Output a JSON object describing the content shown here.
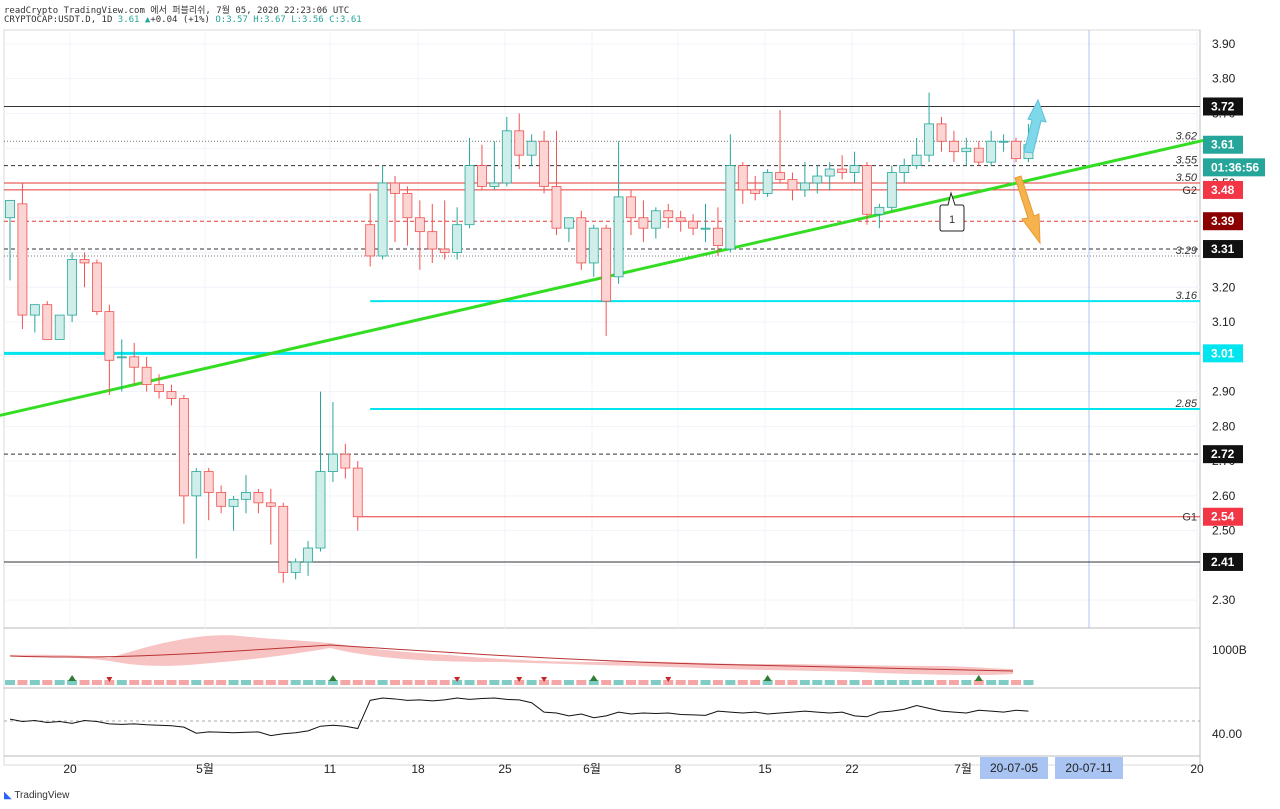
{
  "header": {
    "line1": "readCrypto TradingView.com 에서 퍼블리쉬, 7월 05, 2020 22:23:06 UTC",
    "symbol": "CRYPTOCAP:USDT.D, 1D",
    "last": "3.61",
    "change": "+0.04 (+1%)",
    "ohlc": "O:3.57 H:3.67 L:3.56 C:3.61"
  },
  "footer": {
    "brand": "TradingView"
  },
  "colors": {
    "up": "#26a69a",
    "down": "#ef5350",
    "trend": "#33dd22",
    "cyan": "#00e5ee",
    "red_line": "#e53935"
  },
  "chart_data": {
    "type": "candlestick",
    "y_range": [
      2.22,
      3.94
    ],
    "y_ticks": [
      "3.90",
      "3.80",
      "3.70",
      "3.60",
      "3.50",
      "3.40",
      "3.30",
      "3.20",
      "3.10",
      "3.00",
      "2.90",
      "2.80",
      "2.70",
      "2.60",
      "2.50",
      "2.40",
      "2.30"
    ],
    "x_ticks": [
      "20",
      "5월",
      "11",
      "18",
      "25",
      "6월",
      "8",
      "15",
      "22",
      "7월",
      "20-07-05",
      "20-07-11",
      "20"
    ],
    "candles": [
      {
        "o": 3.4,
        "h": 3.45,
        "l": 3.22,
        "c": 3.45
      },
      {
        "o": 3.44,
        "h": 3.5,
        "l": 3.08,
        "c": 3.12
      },
      {
        "o": 3.12,
        "h": 3.15,
        "l": 3.07,
        "c": 3.15
      },
      {
        "o": 3.15,
        "h": 3.16,
        "l": 3.05,
        "c": 3.05
      },
      {
        "o": 3.05,
        "h": 3.12,
        "l": 3.05,
        "c": 3.12
      },
      {
        "o": 3.12,
        "h": 3.3,
        "l": 3.1,
        "c": 3.28
      },
      {
        "o": 3.28,
        "h": 3.3,
        "l": 3.2,
        "c": 3.27
      },
      {
        "o": 3.27,
        "h": 3.28,
        "l": 3.12,
        "c": 3.13
      },
      {
        "o": 3.13,
        "h": 3.15,
        "l": 2.89,
        "c": 2.99
      },
      {
        "o": 3.0,
        "h": 3.05,
        "l": 2.9,
        "c": 3.0
      },
      {
        "o": 3.0,
        "h": 3.04,
        "l": 2.92,
        "c": 2.97
      },
      {
        "o": 2.97,
        "h": 3.0,
        "l": 2.9,
        "c": 2.92
      },
      {
        "o": 2.92,
        "h": 2.95,
        "l": 2.88,
        "c": 2.9
      },
      {
        "o": 2.9,
        "h": 2.92,
        "l": 2.86,
        "c": 2.88
      },
      {
        "o": 2.88,
        "h": 2.89,
        "l": 2.52,
        "c": 2.6
      },
      {
        "o": 2.6,
        "h": 2.68,
        "l": 2.42,
        "c": 2.67
      },
      {
        "o": 2.67,
        "h": 2.68,
        "l": 2.53,
        "c": 2.61
      },
      {
        "o": 2.61,
        "h": 2.63,
        "l": 2.55,
        "c": 2.57
      },
      {
        "o": 2.57,
        "h": 2.6,
        "l": 2.5,
        "c": 2.59
      },
      {
        "o": 2.59,
        "h": 2.66,
        "l": 2.55,
        "c": 2.61
      },
      {
        "o": 2.61,
        "h": 2.62,
        "l": 2.55,
        "c": 2.58
      },
      {
        "o": 2.58,
        "h": 2.62,
        "l": 2.46,
        "c": 2.57
      },
      {
        "o": 2.57,
        "h": 2.58,
        "l": 2.35,
        "c": 2.38
      },
      {
        "o": 2.38,
        "h": 2.42,
        "l": 2.36,
        "c": 2.41
      },
      {
        "o": 2.41,
        "h": 2.47,
        "l": 2.37,
        "c": 2.45
      },
      {
        "o": 2.45,
        "h": 2.9,
        "l": 2.44,
        "c": 2.67
      },
      {
        "o": 2.67,
        "h": 2.87,
        "l": 2.64,
        "c": 2.72
      },
      {
        "o": 2.72,
        "h": 2.75,
        "l": 2.65,
        "c": 2.68
      },
      {
        "o": 2.68,
        "h": 2.7,
        "l": 2.5,
        "c": 2.54
      },
      {
        "o": 3.38,
        "h": 3.47,
        "l": 3.26,
        "c": 3.29
      },
      {
        "o": 3.29,
        "h": 3.55,
        "l": 3.28,
        "c": 3.5
      },
      {
        "o": 3.5,
        "h": 3.52,
        "l": 3.33,
        "c": 3.47
      },
      {
        "o": 3.47,
        "h": 3.49,
        "l": 3.32,
        "c": 3.4
      },
      {
        "o": 3.4,
        "h": 3.45,
        "l": 3.25,
        "c": 3.36
      },
      {
        "o": 3.36,
        "h": 3.44,
        "l": 3.27,
        "c": 3.31
      },
      {
        "o": 3.31,
        "h": 3.45,
        "l": 3.28,
        "c": 3.3
      },
      {
        "o": 3.3,
        "h": 3.43,
        "l": 3.28,
        "c": 3.38
      },
      {
        "o": 3.38,
        "h": 3.63,
        "l": 3.37,
        "c": 3.55
      },
      {
        "o": 3.55,
        "h": 3.61,
        "l": 3.48,
        "c": 3.49
      },
      {
        "o": 3.49,
        "h": 3.62,
        "l": 3.48,
        "c": 3.5
      },
      {
        "o": 3.5,
        "h": 3.69,
        "l": 3.49,
        "c": 3.65
      },
      {
        "o": 3.65,
        "h": 3.7,
        "l": 3.54,
        "c": 3.58
      },
      {
        "o": 3.58,
        "h": 3.64,
        "l": 3.55,
        "c": 3.62
      },
      {
        "o": 3.62,
        "h": 3.65,
        "l": 3.47,
        "c": 3.49
      },
      {
        "o": 3.49,
        "h": 3.65,
        "l": 3.35,
        "c": 3.37
      },
      {
        "o": 3.37,
        "h": 3.4,
        "l": 3.33,
        "c": 3.4
      },
      {
        "o": 3.4,
        "h": 3.42,
        "l": 3.25,
        "c": 3.27
      },
      {
        "o": 3.27,
        "h": 3.38,
        "l": 3.23,
        "c": 3.37
      },
      {
        "o": 3.37,
        "h": 3.38,
        "l": 3.06,
        "c": 3.16
      },
      {
        "o": 3.23,
        "h": 3.62,
        "l": 3.21,
        "c": 3.46
      },
      {
        "o": 3.46,
        "h": 3.48,
        "l": 3.35,
        "c": 3.4
      },
      {
        "o": 3.4,
        "h": 3.45,
        "l": 3.33,
        "c": 3.37
      },
      {
        "o": 3.37,
        "h": 3.43,
        "l": 3.34,
        "c": 3.42
      },
      {
        "o": 3.42,
        "h": 3.44,
        "l": 3.37,
        "c": 3.4
      },
      {
        "o": 3.4,
        "h": 3.42,
        "l": 3.36,
        "c": 3.39
      },
      {
        "o": 3.39,
        "h": 3.41,
        "l": 3.35,
        "c": 3.37
      },
      {
        "o": 3.37,
        "h": 3.44,
        "l": 3.33,
        "c": 3.37
      },
      {
        "o": 3.37,
        "h": 3.43,
        "l": 3.29,
        "c": 3.32
      },
      {
        "o": 3.31,
        "h": 3.64,
        "l": 3.3,
        "c": 3.55
      },
      {
        "o": 3.55,
        "h": 3.56,
        "l": 3.44,
        "c": 3.48
      },
      {
        "o": 3.48,
        "h": 3.52,
        "l": 3.45,
        "c": 3.47
      },
      {
        "o": 3.47,
        "h": 3.54,
        "l": 3.46,
        "c": 3.53
      },
      {
        "o": 3.53,
        "h": 3.71,
        "l": 3.5,
        "c": 3.51
      },
      {
        "o": 3.51,
        "h": 3.53,
        "l": 3.45,
        "c": 3.48
      },
      {
        "o": 3.48,
        "h": 3.56,
        "l": 3.46,
        "c": 3.5
      },
      {
        "o": 3.5,
        "h": 3.55,
        "l": 3.47,
        "c": 3.52
      },
      {
        "o": 3.52,
        "h": 3.56,
        "l": 3.48,
        "c": 3.54
      },
      {
        "o": 3.54,
        "h": 3.58,
        "l": 3.51,
        "c": 3.53
      },
      {
        "o": 3.53,
        "h": 3.59,
        "l": 3.5,
        "c": 3.55
      },
      {
        "o": 3.55,
        "h": 3.56,
        "l": 3.38,
        "c": 3.41
      },
      {
        "o": 3.41,
        "h": 3.44,
        "l": 3.37,
        "c": 3.43
      },
      {
        "o": 3.43,
        "h": 3.55,
        "l": 3.42,
        "c": 3.53
      },
      {
        "o": 3.53,
        "h": 3.57,
        "l": 3.5,
        "c": 3.55
      },
      {
        "o": 3.55,
        "h": 3.63,
        "l": 3.54,
        "c": 3.58
      },
      {
        "o": 3.58,
        "h": 3.76,
        "l": 3.56,
        "c": 3.67
      },
      {
        "o": 3.67,
        "h": 3.69,
        "l": 3.59,
        "c": 3.62
      },
      {
        "o": 3.62,
        "h": 3.65,
        "l": 3.56,
        "c": 3.59
      },
      {
        "o": 3.59,
        "h": 3.63,
        "l": 3.55,
        "c": 3.6
      },
      {
        "o": 3.6,
        "h": 3.62,
        "l": 3.55,
        "c": 3.56
      },
      {
        "o": 3.56,
        "h": 3.65,
        "l": 3.55,
        "c": 3.62
      },
      {
        "o": 3.62,
        "h": 3.64,
        "l": 3.59,
        "c": 3.62
      },
      {
        "o": 3.62,
        "h": 3.63,
        "l": 3.56,
        "c": 3.57
      },
      {
        "o": 3.57,
        "h": 3.67,
        "l": 3.56,
        "c": 3.61
      }
    ],
    "price_badges": [
      {
        "value": 3.72,
        "text": "3.72",
        "bg": "#111111"
      },
      {
        "value": 3.61,
        "text": "3.61",
        "bg": "#26a69a"
      },
      {
        "value": 3.545,
        "text": "01:36:56",
        "bg": "#26a69a"
      },
      {
        "value": 3.48,
        "text": "3.48",
        "bg": "#f23645"
      },
      {
        "value": 3.39,
        "text": "3.39",
        "bg": "#8b0000"
      },
      {
        "value": 3.31,
        "text": "3.31",
        "bg": "#111111"
      },
      {
        "value": 3.01,
        "text": "3.01",
        "bg": "#00e5ee"
      },
      {
        "value": 2.72,
        "text": "2.72",
        "bg": "#111111"
      },
      {
        "value": 2.54,
        "text": "2.54",
        "bg": "#f23645"
      },
      {
        "value": 2.41,
        "text": "2.41",
        "bg": "#111111"
      }
    ],
    "hlines": [
      {
        "value": 3.72,
        "style": "solid",
        "color": "#333333"
      },
      {
        "value": 3.62,
        "style": "dotted",
        "color": "#777777"
      },
      {
        "value": 3.55,
        "style": "dashed",
        "color": "#333333"
      },
      {
        "value": 3.5,
        "style": "solid",
        "color": "#e53935"
      },
      {
        "value": 3.48,
        "style": "solid",
        "color": "#e53935"
      },
      {
        "value": 3.39,
        "style": "dashed",
        "color": "#e53935"
      },
      {
        "value": 3.31,
        "style": "dashed",
        "color": "#333333"
      },
      {
        "value": 3.29,
        "style": "dotted",
        "color": "#777777"
      },
      {
        "value": 3.16,
        "style": "solid",
        "color": "#00e5ee",
        "start": 29
      },
      {
        "value": 3.01,
        "style": "thick",
        "color": "#00e5ee"
      },
      {
        "value": 2.85,
        "style": "solid",
        "color": "#00e5ee",
        "start": 29
      },
      {
        "value": 2.72,
        "style": "dashed",
        "color": "#333333"
      },
      {
        "value": 2.54,
        "style": "solid",
        "color": "#e53935",
        "start": 28
      },
      {
        "value": 2.41,
        "style": "solid",
        "color": "#333333"
      }
    ],
    "line_labels": [
      {
        "value": 3.62,
        "text": "3.62"
      },
      {
        "value": 3.55,
        "text": "3.55"
      },
      {
        "value": 3.5,
        "text": "3.50"
      },
      {
        "value": 3.29,
        "text": "3.29"
      },
      {
        "value": 3.16,
        "text": "3.16"
      },
      {
        "value": 2.85,
        "text": "2.85"
      }
    ],
    "g_labels": [
      {
        "value": 3.48,
        "text": "G2"
      },
      {
        "value": 2.54,
        "text": "G1"
      }
    ],
    "trendline": {
      "from": [
        -1,
        2.83
      ],
      "to": [
        97,
        3.63
      ]
    },
    "annotation": "1",
    "volume_axis_label": "1000B",
    "osc_axis_label": "40.00"
  }
}
